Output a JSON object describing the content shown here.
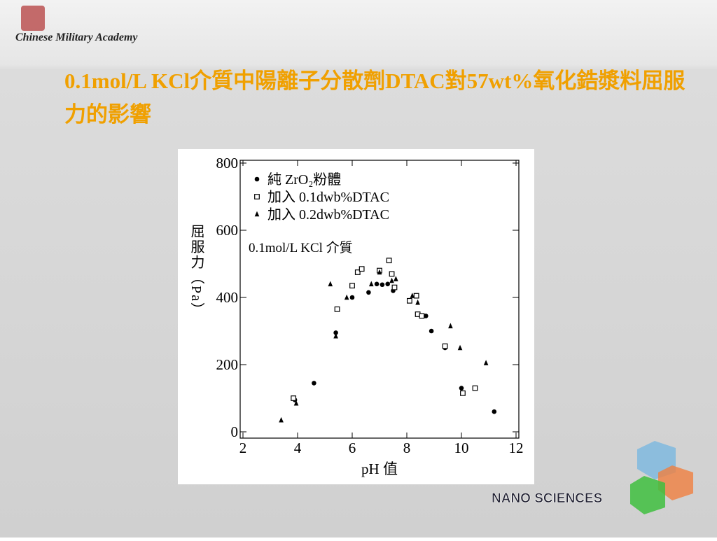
{
  "header": {
    "logo_text": "Chinese Military Academy",
    "title": "0.1mol/L KCl介質中陽離子分散劑DTAC對57wt%氧化鋯漿料屈服力的影響",
    "footer_logo": "NANO SCIENCES"
  },
  "chart_data": {
    "type": "scatter",
    "x_label": "pH 值",
    "y_label": "屈服力（Pa）",
    "annotation": "0.1mol/L KCl 介質",
    "xlim": [
      2,
      12
    ],
    "xticks": [
      2,
      4,
      6,
      8,
      10,
      12
    ],
    "ylim": [
      0,
      800
    ],
    "yticks": [
      0,
      200,
      400,
      600,
      800
    ],
    "legend": "upper left",
    "series": [
      {
        "name": "純 ZrO₂粉體",
        "marker": "circle",
        "color": "#000000",
        "x": [
          3.9,
          4.6,
          5.4,
          6.0,
          6.6,
          6.9,
          7.1,
          7.3,
          7.5,
          8.7,
          8.9,
          9.4,
          10.0,
          11.2
        ],
        "values": [
          95,
          145,
          295,
          400,
          415,
          440,
          438,
          440,
          420,
          345,
          300,
          250,
          130,
          60
        ]
      },
      {
        "name": "加入 0.1dwb%DTAC",
        "marker": "square",
        "color": "#000000",
        "x": [
          3.85,
          5.45,
          6.0,
          6.2,
          6.35,
          7.0,
          7.35,
          7.45,
          7.55,
          8.1,
          8.35,
          8.4,
          8.55,
          9.4,
          10.05,
          10.5
        ],
        "values": [
          100,
          365,
          435,
          475,
          485,
          480,
          510,
          470,
          430,
          390,
          405,
          350,
          345,
          255,
          115,
          130
        ]
      },
      {
        "name": "加入 0.2dwb%DTAC",
        "marker": "triangle",
        "color": "#000000",
        "x": [
          3.4,
          3.95,
          5.2,
          5.4,
          5.8,
          6.7,
          7.0,
          7.45,
          7.6,
          8.2,
          8.4,
          9.6,
          9.95,
          10.9
        ],
        "values": [
          35,
          85,
          440,
          285,
          400,
          440,
          475,
          450,
          455,
          405,
          385,
          315,
          250,
          205
        ]
      }
    ]
  }
}
